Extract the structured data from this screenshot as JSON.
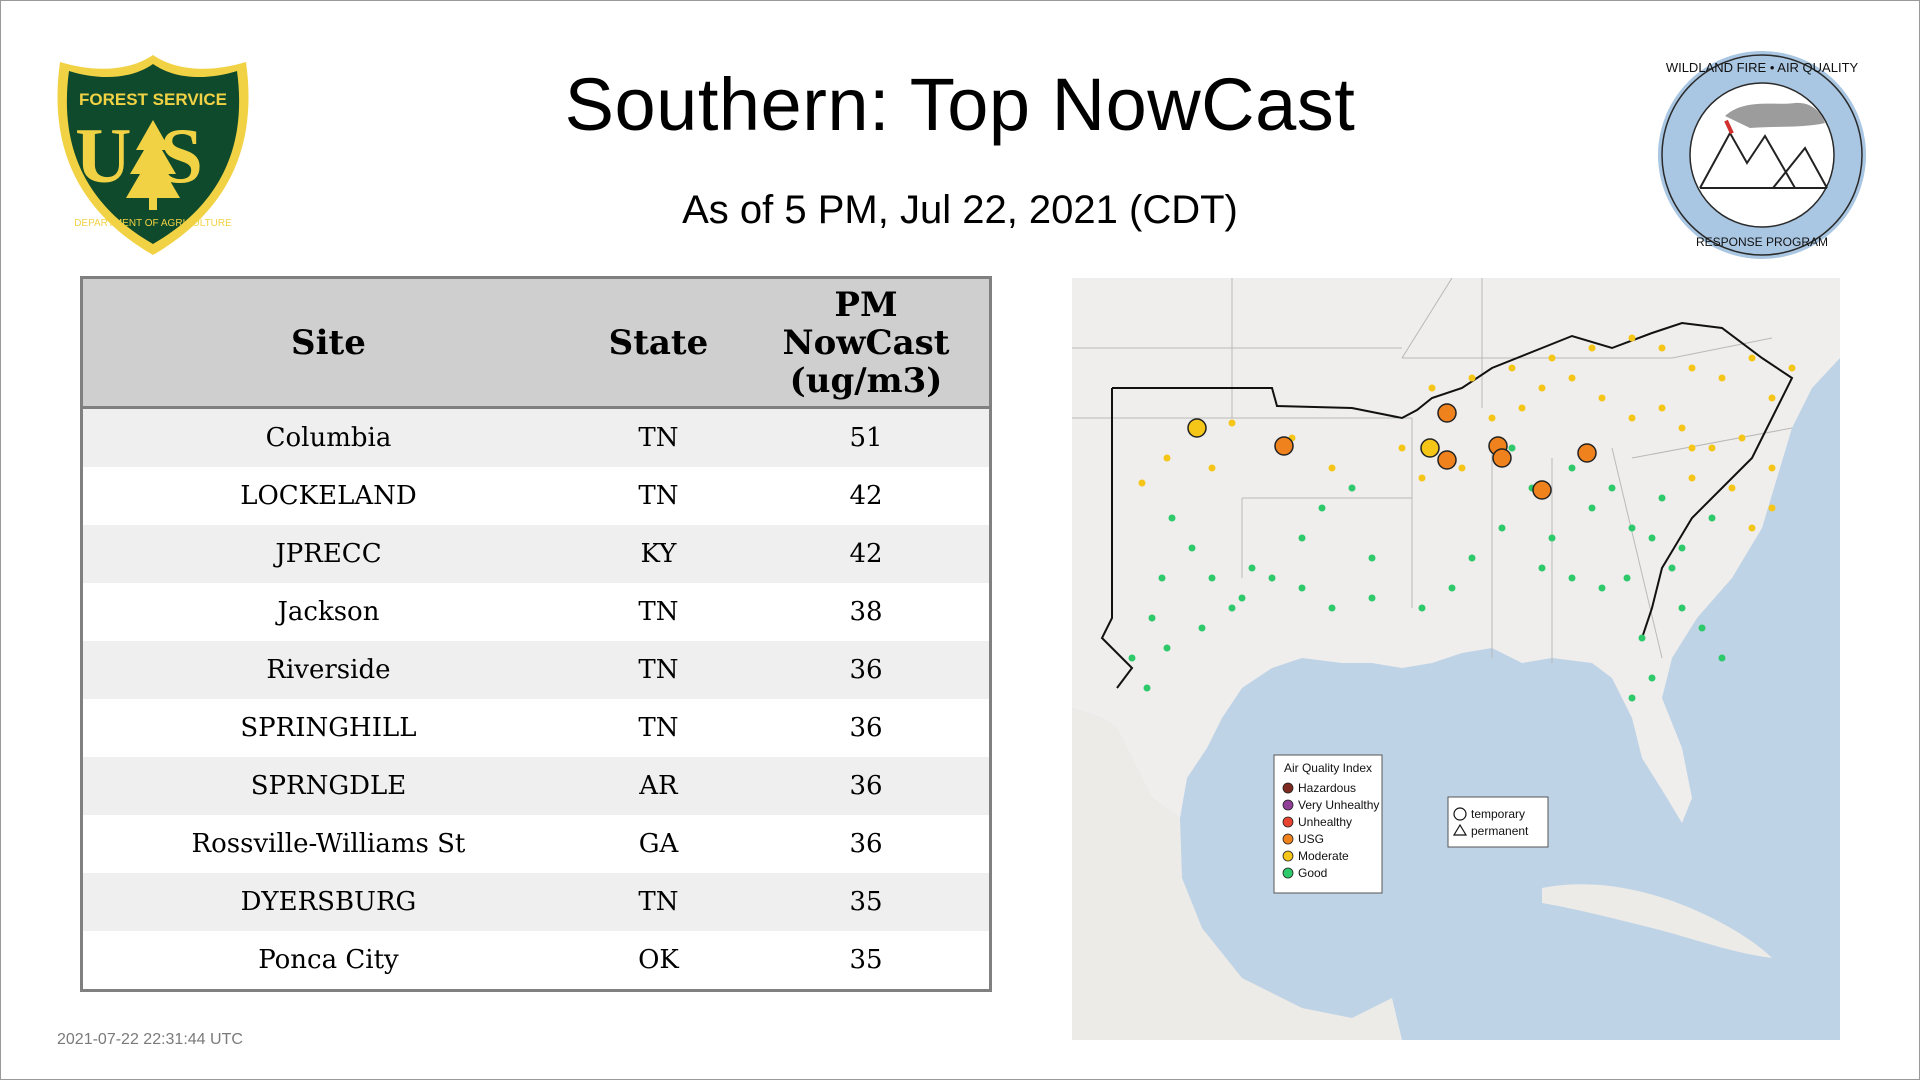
{
  "header": {
    "title": "Southern: Top NowCast",
    "subtitle": "As of  5 PM, Jul 22, 2021 (CDT)"
  },
  "logos": {
    "usfs": {
      "top_text": "FOREST SERVICE",
      "letters": "US",
      "bottom_text": "DEPARTMENT OF AGRICULTURE"
    },
    "wfaq": {
      "top_text": "WILDLAND FIRE • AIR QUALITY",
      "bottom_text": "RESPONSE PROGRAM"
    }
  },
  "table": {
    "headers": {
      "site": "Site",
      "state": "State",
      "pm_line1": "PM",
      "pm_line2": "NowCast",
      "pm_line3": "(ug/m3)"
    },
    "rows": [
      {
        "site": "Columbia",
        "state": "TN",
        "value": "51"
      },
      {
        "site": "LOCKELAND",
        "state": "TN",
        "value": "42"
      },
      {
        "site": "JPRECC",
        "state": "KY",
        "value": "42"
      },
      {
        "site": "Jackson",
        "state": "TN",
        "value": "38"
      },
      {
        "site": "Riverside",
        "state": "TN",
        "value": "36"
      },
      {
        "site": "SPRINGHILL",
        "state": "TN",
        "value": "36"
      },
      {
        "site": "SPRNGDLE",
        "state": "AR",
        "value": "36"
      },
      {
        "site": "Rossville-Williams St",
        "state": "GA",
        "value": "36"
      },
      {
        "site": "DYERSBURG",
        "state": "TN",
        "value": "35"
      },
      {
        "site": "Ponca City",
        "state": "OK",
        "value": "35"
      }
    ]
  },
  "map": {
    "legend": {
      "title": "Air Quality Index",
      "items": [
        {
          "label": "Hazardous",
          "color": "#7e2a1e"
        },
        {
          "label": "Very Unhealthy",
          "color": "#8f3f97"
        },
        {
          "label": "Unhealthy",
          "color": "#e8432f"
        },
        {
          "label": "USG",
          "color": "#f0821e"
        },
        {
          "label": "Moderate",
          "color": "#f5c518"
        },
        {
          "label": "Good",
          "color": "#2ec96a"
        }
      ]
    },
    "shape_legend": {
      "temporary": "temporary",
      "permanent": "permanent"
    },
    "colors": {
      "water": "#bfd3e6",
      "land": "#efeeec",
      "region_border": "#111111"
    }
  },
  "footer": {
    "timestamp": "2021-07-22 22:31:44 UTC"
  }
}
